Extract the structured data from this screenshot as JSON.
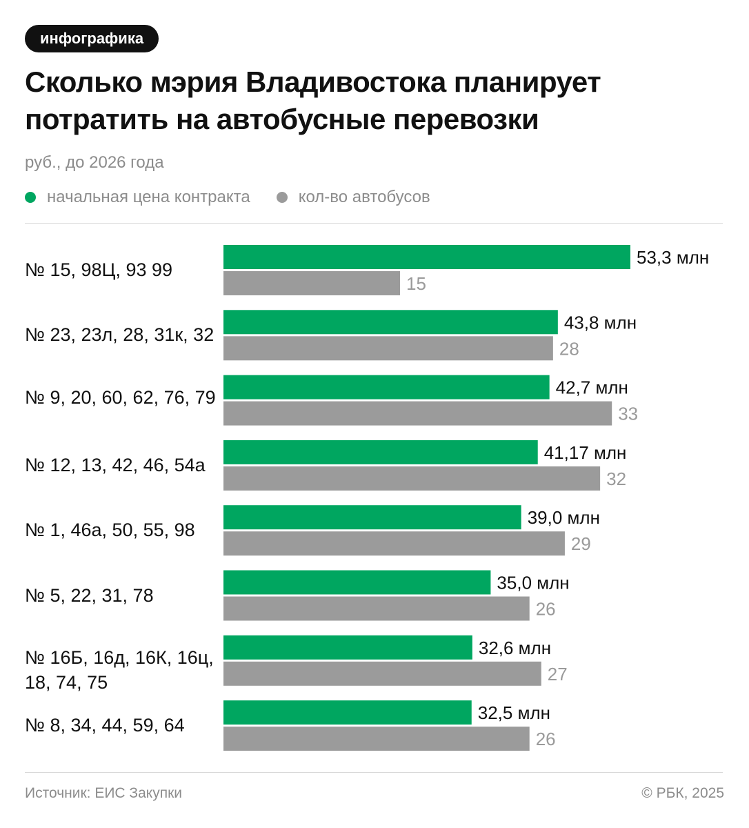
{
  "tag": "инфографика",
  "title": "Сколько мэрия Владивостока планирует потратить на автобусные перевозки",
  "subtitle": "руб., до 2026 года",
  "legend": [
    {
      "label": "начальная цена контракта",
      "color": "#00a660"
    },
    {
      "label": "кол-во автобусов",
      "color": "#9b9b9b"
    }
  ],
  "footer": {
    "source": "Источник: ЕИС Закупки",
    "copyright": "© РБК, 2025"
  },
  "chart_data": {
    "type": "bar",
    "orientation": "horizontal",
    "title": "Сколько мэрия Владивостока планирует потратить на автобусные перевозки",
    "subtitle": "руб., до 2026 года",
    "categories": [
      "№ 15, 98Ц, 93 99",
      "№ 23, 23л, 28, 31к, 32",
      "№ 9, 20, 60, 62, 76, 79",
      "№ 12, 13, 42, 46, 54а",
      "№ 1, 46а, 50, 55, 98",
      "№ 5, 22, 31, 78",
      "№ 16Б, 16д, 16К, 16ц, 18, 74, 75",
      "№ 8, 34, 44, 59, 64"
    ],
    "series": [
      {
        "name": "начальная цена контракта",
        "color": "#00a660",
        "values": [
          53.3,
          43.8,
          42.7,
          41.17,
          39.0,
          35.0,
          32.6,
          32.5
        ],
        "labels": [
          "53,3 млн",
          "43,8 млн",
          "42,7 млн",
          "41,17 млн",
          "39,0 млн",
          "35,0 млн",
          "32,6 млн",
          "32,5 млн"
        ]
      },
      {
        "name": "кол-во автобусов",
        "color": "#9b9b9b",
        "values": [
          15,
          28,
          33,
          32,
          29,
          26,
          27,
          26
        ],
        "labels": [
          "15",
          "28",
          "33",
          "32",
          "29",
          "26",
          "27",
          "26"
        ]
      }
    ],
    "legend_position": "top-left",
    "grid": false
  }
}
